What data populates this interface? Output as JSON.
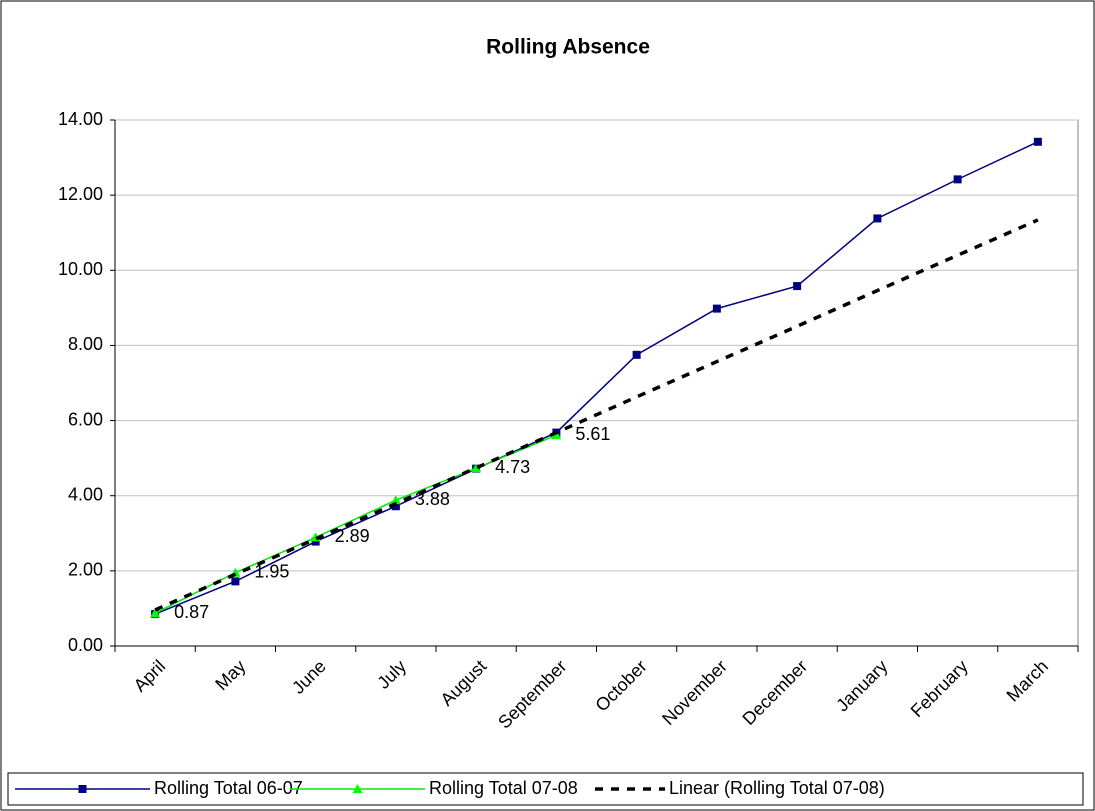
{
  "chart_data": {
    "type": "line",
    "title": "Rolling Absence",
    "categories": [
      "April",
      "May",
      "June",
      "July",
      "August",
      "September",
      "October",
      "November",
      "December",
      "January",
      "February",
      "March"
    ],
    "series": [
      {
        "name": "Rolling Total 06-07",
        "color": "#000080",
        "marker": "square",
        "values": [
          0.85,
          1.72,
          2.78,
          3.72,
          4.72,
          5.68,
          7.75,
          8.98,
          9.58,
          11.38,
          12.42,
          13.42
        ]
      },
      {
        "name": "Rolling Total 07-08",
        "color": "#00ee00",
        "marker": "triangle",
        "values": [
          0.87,
          1.95,
          2.89,
          3.88,
          4.73,
          5.61,
          null,
          null,
          null,
          null,
          null,
          null
        ],
        "data_labels": true
      },
      {
        "name": "Linear (Rolling Total 07-08)",
        "color": "#000000",
        "dashed": true,
        "values": [
          0.96,
          1.91,
          2.85,
          3.79,
          4.74,
          5.68,
          6.63,
          7.57,
          8.51,
          9.46,
          10.4,
          11.34
        ]
      }
    ],
    "ylim": [
      0,
      14
    ],
    "yticks": [
      {
        "value": 0,
        "label": "0.00"
      },
      {
        "value": 2,
        "label": "2.00"
      },
      {
        "value": 4,
        "label": "4.00"
      },
      {
        "value": 6,
        "label": "6.00"
      },
      {
        "value": 8,
        "label": "8.00"
      },
      {
        "value": 10,
        "label": "10.00"
      },
      {
        "value": 12,
        "label": "12.00"
      },
      {
        "value": 14,
        "label": "14.00"
      }
    ],
    "grid": true,
    "legend": "bottom"
  }
}
